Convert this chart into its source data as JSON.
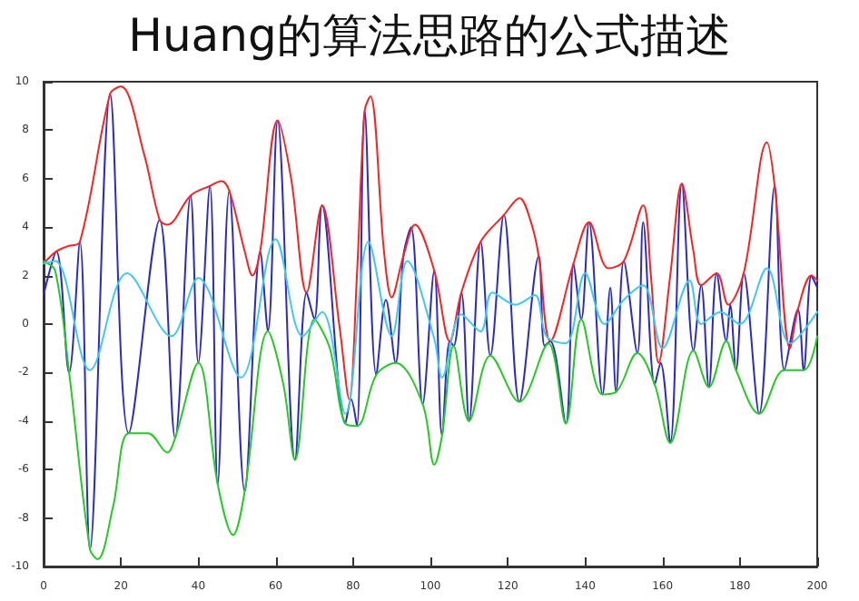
{
  "chart_data": {
    "type": "line",
    "title": "Huang的算法思路的公式描述",
    "xlim": [
      0,
      200
    ],
    "xticks": [
      0,
      20,
      40,
      60,
      80,
      100,
      120,
      140,
      160,
      180,
      200
    ],
    "ylim": [
      -10,
      10
    ],
    "yticks": [
      -10,
      -8,
      -6,
      -4,
      -2,
      0,
      2,
      4,
      6,
      8,
      10
    ],
    "line_style": "solid",
    "series": [
      {
        "color": "#2a2ad0",
        "x": [
          0,
          3.3,
          6.6,
          9.4,
          12,
          17.2,
          22,
          30,
          34,
          38,
          40,
          43,
          45,
          48,
          52,
          56,
          58,
          60.5,
          65,
          68,
          70,
          72,
          78,
          79.5,
          81,
          83,
          86,
          88.5,
          91,
          93,
          95,
          98,
          101,
          103,
          105,
          106,
          108,
          110,
          113,
          115.5,
          119,
          123,
          128,
          129.5,
          131,
          135,
          137,
          139,
          141,
          144.5,
          146.5,
          148,
          150,
          153.5,
          155,
          158,
          159.5,
          162,
          165,
          168,
          170,
          172,
          174,
          176.5,
          177.5,
          179,
          181,
          185,
          189,
          191.5,
          195,
          196.5,
          198.5,
          200
        ],
        "values": [
          1.2,
          3.0,
          -2.0,
          3.4,
          -9.3,
          9.5,
          -4.5,
          4.3,
          -4.7,
          5.3,
          -1.6,
          5.7,
          -6.6,
          5.5,
          -6.9,
          3.0,
          -0.3,
          8.4,
          -5.6,
          1.3,
          0.2,
          4.9,
          -4.1,
          -3.1,
          -4.2,
          8.8,
          -2.1,
          1.0,
          -1.6,
          2.8,
          4.0,
          -3.3,
          2.2,
          -4.6,
          -0.7,
          -0.9,
          1.3,
          -4.0,
          3.4,
          -1.3,
          4.5,
          -3.2,
          2.8,
          -0.9,
          -0.7,
          -4.1,
          2.5,
          0.2,
          4.2,
          -2.9,
          1.5,
          -2.8,
          2.6,
          -1.2,
          4.2,
          -2.5,
          -1.6,
          -4.9,
          5.8,
          -1.1,
          1.6,
          -2.6,
          2.1,
          -0.7,
          0.8,
          -1.9,
          2.1,
          -3.7,
          5.7,
          -1.9,
          0.6,
          -1.9,
          2.0,
          1.5
        ]
      },
      {
        "color": "#ff2020",
        "x": [
          0,
          3.3,
          6,
          9.4,
          17.2,
          20,
          26,
          30,
          32,
          38,
          43,
          46,
          48,
          52,
          54,
          56,
          60.5,
          64,
          68,
          72,
          76.5,
          79,
          81,
          83,
          84.5,
          88,
          90,
          93,
          96,
          101,
          105,
          108,
          113,
          119,
          123,
          126,
          128,
          131,
          137,
          141,
          146,
          150,
          155,
          157,
          159,
          162,
          165,
          168,
          170,
          174,
          177,
          181,
          187,
          189,
          193,
          195,
          198.5,
          200
        ],
        "values": [
          2.5,
          3.0,
          3.2,
          3.4,
          9.5,
          9.8,
          7.0,
          4.3,
          4.1,
          5.3,
          5.7,
          5.9,
          5.5,
          3.0,
          2.0,
          3.0,
          8.4,
          6.0,
          1.3,
          4.9,
          -0.1,
          -3.1,
          2.0,
          8.8,
          9.4,
          3.0,
          1.1,
          2.8,
          4.1,
          2.2,
          -0.7,
          1.3,
          3.4,
          4.5,
          5.2,
          4.2,
          2.8,
          -0.7,
          2.5,
          4.2,
          2.3,
          2.6,
          4.9,
          2.0,
          -1.6,
          2.0,
          5.8,
          3.0,
          1.6,
          2.1,
          0.8,
          2.1,
          7.5,
          5.7,
          -1.0,
          0.6,
          2.0,
          1.8
        ]
      },
      {
        "color": "#22cc22",
        "x": [
          0,
          3,
          6.6,
          12,
          14,
          18,
          22,
          27,
          32,
          34,
          40,
          45,
          49,
          52,
          58,
          62,
          65,
          70,
          74,
          78,
          81,
          86,
          91,
          98,
          101,
          103,
          106,
          110,
          115.5,
          123,
          130.5,
          135,
          139,
          144.5,
          148,
          153.5,
          158,
          162,
          168,
          172,
          176.5,
          179,
          185,
          191.5,
          196.5,
          200
        ],
        "values": [
          2.6,
          2.2,
          -2.0,
          -9.3,
          -9.7,
          -7.5,
          -4.5,
          -4.5,
          -5.3,
          -4.7,
          -1.6,
          -6.6,
          -8.7,
          -6.9,
          -0.3,
          -2.5,
          -5.6,
          0.2,
          -1.0,
          -4.1,
          -4.2,
          -2.1,
          -1.6,
          -3.3,
          -5.8,
          -4.6,
          -0.9,
          -4.0,
          -1.3,
          -3.2,
          -0.8,
          -4.1,
          0.2,
          -2.9,
          -2.8,
          -1.2,
          -2.5,
          -4.9,
          -1.1,
          -2.6,
          -0.7,
          -1.9,
          -3.7,
          -1.9,
          -1.9,
          -0.5
        ]
      },
      {
        "color": "#40c8f0",
        "x": [
          0,
          3,
          12,
          21.6,
          33,
          40,
          51,
          60,
          67,
          72,
          78,
          84,
          90,
          94,
          101,
          103,
          108,
          113,
          116,
          122,
          127,
          130,
          135,
          140,
          145,
          150,
          155,
          160,
          167,
          170,
          175,
          180,
          187,
          193,
          200
        ],
        "values": [
          2.5,
          2.6,
          -1.9,
          2.1,
          -0.5,
          1.9,
          -2.2,
          3.5,
          -0.5,
          0.5,
          -3.7,
          3.4,
          -0.5,
          2.6,
          -0.6,
          -2.2,
          0.4,
          -0.3,
          1.3,
          0.8,
          1.2,
          -0.5,
          -0.8,
          2.1,
          0.0,
          1.0,
          1.6,
          -1.0,
          1.8,
          0.0,
          0.5,
          0.0,
          2.3,
          -0.8,
          0.5
        ]
      }
    ]
  }
}
